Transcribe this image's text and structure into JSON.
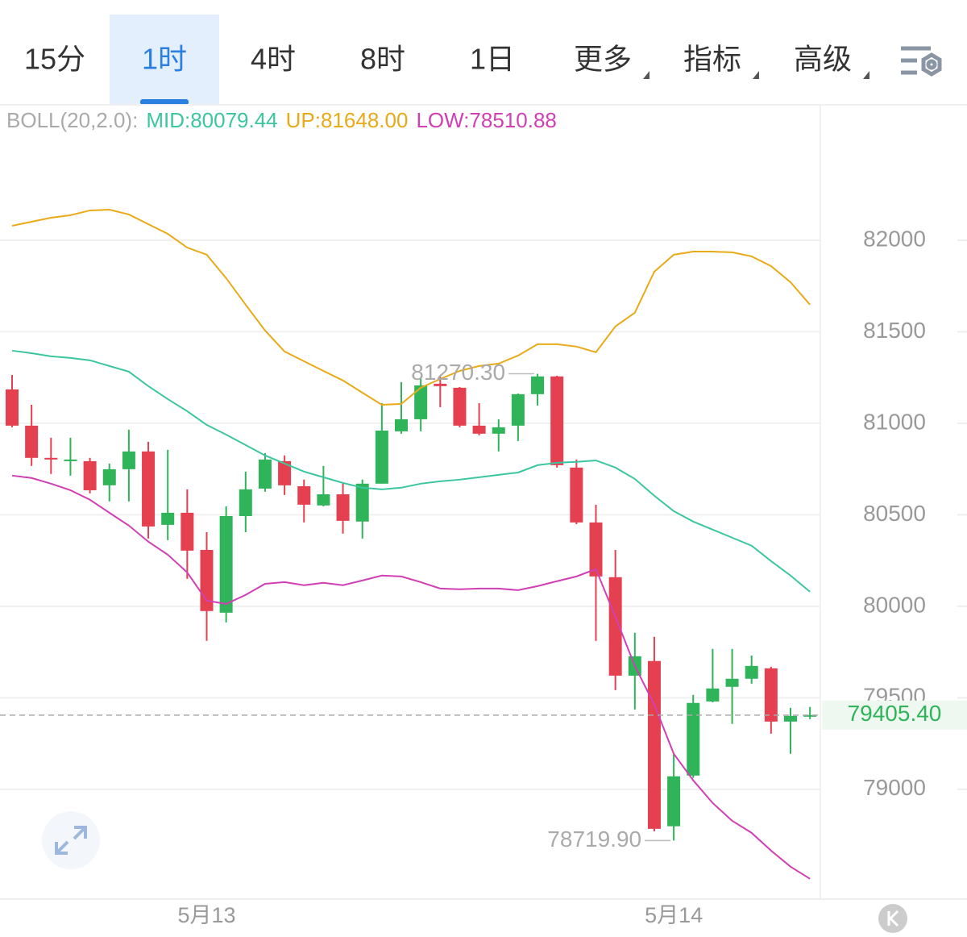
{
  "tabs": {
    "items": [
      "15分",
      "1时",
      "4时",
      "8时",
      "1日",
      "更多",
      "指标",
      "高级"
    ],
    "selected": 1
  },
  "chart_data": {
    "type": "candlestick",
    "indicator": "BOLL(20,2.0):",
    "categories": [
      null,
      null,
      null,
      null,
      null,
      null,
      null,
      null,
      null,
      null,
      "5月13",
      null,
      null,
      null,
      null,
      null,
      null,
      null,
      null,
      null,
      null,
      null,
      null,
      null,
      null,
      null,
      null,
      null,
      null,
      null,
      null,
      null,
      null,
      null,
      "5月14",
      null,
      null,
      null,
      null,
      null,
      null,
      null
    ],
    "open": [
      81185,
      80987,
      80811,
      80793,
      80793,
      80661,
      80749,
      80846,
      80445,
      80511,
      80308,
      79965,
      80493,
      80643,
      80793,
      80656,
      80551,
      80612,
      80463,
      80670,
      80956,
      81022,
      81216,
      81194,
      80987,
      80943,
      80987,
      81159,
      81256,
      80758,
      80458,
      80159,
      79621,
      79701,
      78798,
      79075,
      79480,
      79560,
      79604,
      79661,
      79370,
      79401
    ],
    "high": [
      81264,
      81101,
      80921,
      80921,
      80811,
      80780,
      80965,
      80899,
      80855,
      80639,
      80405,
      80546,
      80736,
      80837,
      80824,
      80692,
      80767,
      80670,
      80692,
      81110,
      81225,
      81250,
      81255,
      81198,
      81110,
      81022,
      81163,
      81270.3,
      81260,
      80802,
      80555,
      80308,
      79855,
      79833,
      79194,
      79516,
      79767,
      79767,
      79731,
      79670,
      79445,
      79450
    ],
    "low": [
      80978,
      80767,
      80723,
      80714,
      80617,
      80573,
      80573,
      80370,
      80361,
      80150,
      79811,
      79912,
      80405,
      80626,
      80608,
      80458,
      80546,
      80397,
      80370,
      80670,
      80943,
      80956,
      81088,
      80978,
      80934,
      80846,
      80903,
      81097,
      80758,
      80449,
      79811,
      79542,
      79436,
      78770,
      78719.9,
      79062,
      79475,
      79357,
      79577,
      79304,
      79194,
      79383
    ],
    "close": [
      80987,
      80811,
      80802,
      80802,
      80634,
      80749,
      80846,
      80436,
      80511,
      80304,
      79974,
      80493,
      80639,
      80802,
      80661,
      80555,
      80612,
      80467,
      80670,
      80960,
      81022,
      81207,
      81203,
      80987,
      80943,
      80978,
      81159,
      81256,
      80771,
      80458,
      80163,
      79621,
      79727,
      78784,
      79071,
      79472,
      79551,
      79604,
      79674,
      79370,
      79401,
      79405.4
    ],
    "up_color": "#2fb45a",
    "down_color": "#e5404f",
    "series": [
      {
        "name": "MID:80079.44",
        "color": "#3cc6a0",
        "values": [
          81397,
          81383,
          81366,
          81357,
          81344,
          81313,
          81282,
          81203,
          81132,
          81066,
          80991,
          80938,
          80881,
          80824,
          80780,
          80736,
          80705,
          80674,
          80648,
          80639,
          80648,
          80670,
          80683,
          80692,
          80705,
          80718,
          80731,
          80771,
          80784,
          80789,
          80797,
          80758,
          80696,
          80604,
          80520,
          80463,
          80419,
          80375,
          80331,
          80247,
          80168,
          80079.44
        ]
      },
      {
        "name": "UP:81648.00",
        "color": "#e8ab17",
        "values": [
          82079,
          82101,
          82123,
          82137,
          82163,
          82167,
          82141,
          82088,
          82035,
          81960,
          81921,
          81793,
          81648,
          81507,
          81392,
          81339,
          81286,
          81234,
          81167,
          81101,
          81106,
          81194,
          81242,
          81286,
          81313,
          81326,
          81370,
          81432,
          81432,
          81419,
          81388,
          81529,
          81604,
          81828,
          81921,
          81938,
          81938,
          81934,
          81912,
          81859,
          81771,
          81648
        ]
      },
      {
        "name": "LOW:78510.88",
        "color": "#d040b4",
        "values": [
          80714,
          80701,
          80670,
          80634,
          80582,
          80511,
          80441,
          80353,
          80282,
          80185,
          80031,
          80013,
          80062,
          80123,
          80132,
          80115,
          80128,
          80115,
          80141,
          80168,
          80163,
          80132,
          80097,
          80093,
          80097,
          80097,
          80088,
          80110,
          80137,
          80163,
          80203,
          79943,
          79674,
          79463,
          79194,
          79049,
          78925,
          78828,
          78762,
          78665,
          78577,
          78510.88
        ]
      }
    ],
    "ylim": [
      78400,
      82740
    ],
    "yticks": [
      79000,
      79500,
      80000,
      80500,
      81000,
      81500,
      82000
    ],
    "grid": true,
    "high_label": {
      "value": 81270.3,
      "label": "81270.30"
    },
    "low_label": {
      "value": 78719.9,
      "label": "78719.90"
    },
    "last_price": {
      "value": 79405.4,
      "label": "79405.40"
    }
  }
}
